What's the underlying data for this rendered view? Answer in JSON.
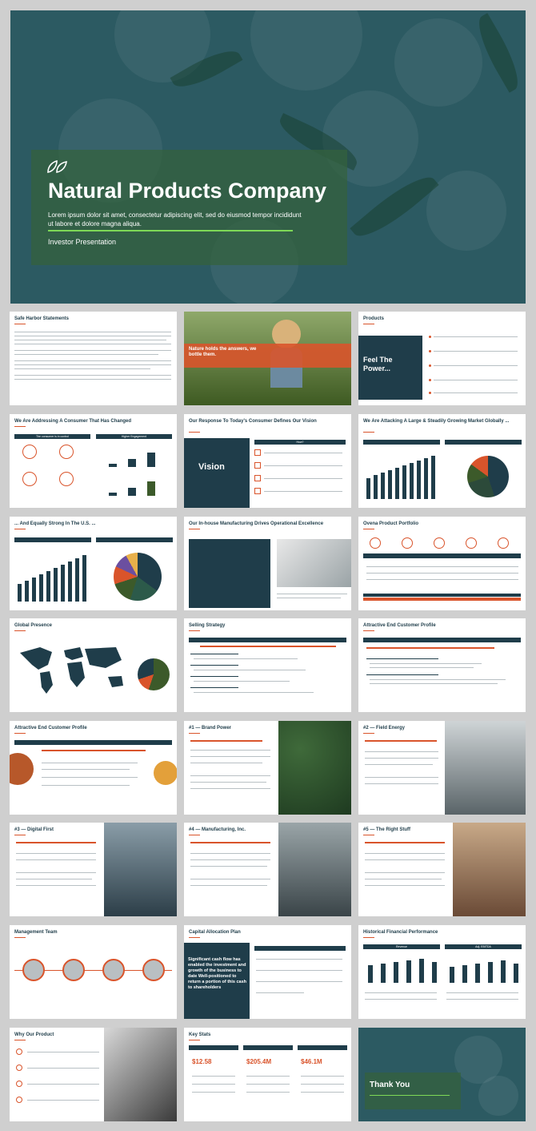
{
  "hero": {
    "title": "Natural Products Company",
    "subtitle": "Lorem ipsum dolor sit amet, consectetur adipiscing elit, sed do eiusmod tempor incididunt ut labore et dolore magna aliqua.",
    "caption": "Investor Presentation"
  },
  "slides": [
    {
      "title": "Safe Harbor Statements"
    },
    {
      "title": "",
      "overlay": "Nature holds the answers, we bottle them."
    },
    {
      "title": "Products",
      "panel": "Feel The Power..."
    },
    {
      "title": "We Are Addressing A Consumer That Has Changed",
      "h1": "The consumer is in control",
      "h2": "Higher Engagement"
    },
    {
      "title": "Our Response To Today's Consumer Defines Our Vision",
      "panel": "Vision",
      "h1": "How?"
    },
    {
      "title": "We Are Attacking A Large & Steadily Growing Market Globally ..."
    },
    {
      "title": "... And Equally Strong In The U.S. ..."
    },
    {
      "title": "Our In-house Manufacturing Drives Operational Excellence"
    },
    {
      "title": "Ovena Product Portfolio"
    },
    {
      "title": "Global Presence"
    },
    {
      "title": "Selling Strategy"
    },
    {
      "title": "Attractive End Customer Profile"
    },
    {
      "title": "Attractive End Customer Profile"
    },
    {
      "title": "#1 — Brand Power"
    },
    {
      "title": "#2 — Field Energy"
    },
    {
      "title": "#3 — Digital First"
    },
    {
      "title": "#4 — Manufacturing, Inc."
    },
    {
      "title": "#5 — The Right Stuff"
    },
    {
      "title": "Management Team"
    },
    {
      "title": "Capital Allocation Plan",
      "panel": "Significant cash flow has enabled the investment and growth of the business to date Well-positioned to return a portion of this cash to shareholders"
    },
    {
      "title": "Historical Financial Performance",
      "h1": "Revenue",
      "h2": "Adj. EBITDA"
    },
    {
      "title": "Why Our Product"
    },
    {
      "title": "Key Stats",
      "v1": "$12.58",
      "v2": "$205.4M",
      "v3": "$46.1M"
    },
    {
      "title": "",
      "overlay": "Thank You"
    }
  ],
  "colors": {
    "navy": "#1f3d4a",
    "orange": "#d9542b",
    "teal": "#2c5a62",
    "green": "#7ed957"
  }
}
